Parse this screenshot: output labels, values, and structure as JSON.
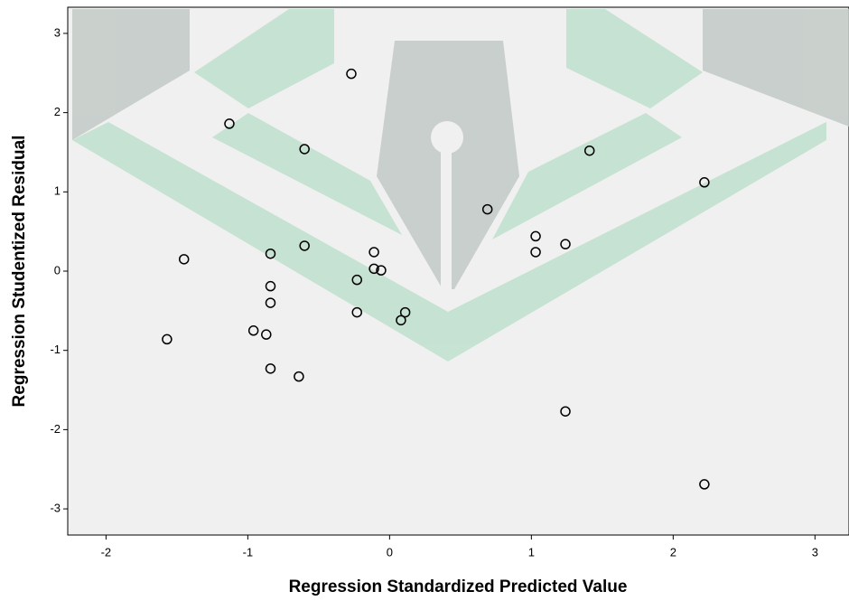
{
  "chart_data": {
    "type": "scatter",
    "xlabel": "Regression Standardized Predicted Value",
    "ylabel": "Regression Studentized Residual",
    "x": [
      -0.27,
      -1.13,
      -0.6,
      1.41,
      2.22,
      0.69,
      1.03,
      1.03,
      1.24,
      -1.45,
      -0.84,
      -0.6,
      -0.11,
      -0.11,
      -0.06,
      -0.23,
      -0.84,
      -0.84,
      -0.23,
      0.11,
      0.08,
      -1.57,
      -0.96,
      -0.87,
      -0.84,
      -0.64,
      1.24,
      2.22
    ],
    "values": [
      2.49,
      1.86,
      1.54,
      1.52,
      1.12,
      0.78,
      0.44,
      0.24,
      0.34,
      0.15,
      0.22,
      0.32,
      0.24,
      0.03,
      0.01,
      -0.11,
      -0.19,
      -0.4,
      -0.52,
      -0.52,
      -0.62,
      -0.86,
      -0.75,
      -0.8,
      -1.23,
      -1.33,
      -1.77,
      -2.69
    ],
    "color": "#000000",
    "xlim": [
      -2.27,
      3.24
    ],
    "ylim": [
      -3.33,
      3.33
    ],
    "xticks": [
      -2,
      -1,
      0,
      1,
      2,
      3
    ],
    "yticks": [
      -3,
      -2,
      -1,
      0,
      1,
      2,
      3
    ]
  }
}
